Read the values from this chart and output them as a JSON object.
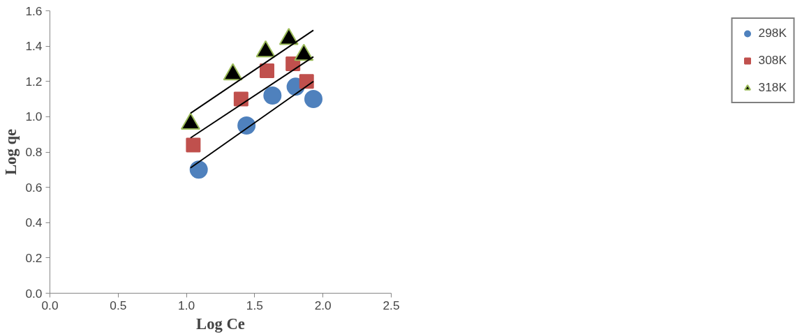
{
  "chart_data": {
    "type": "scatter",
    "xlabel": "Log Ce",
    "ylabel": "Log qe",
    "xlim": [
      0,
      2.5
    ],
    "ylim": [
      0,
      1.6
    ],
    "xticks": [
      {
        "value": 0,
        "label": "0.0"
      },
      {
        "value": 0.5,
        "label": "0.5"
      },
      {
        "value": 1,
        "label": "1.0"
      },
      {
        "value": 1.5,
        "label": "1.5"
      },
      {
        "value": 2,
        "label": "2.0"
      },
      {
        "value": 2.5,
        "label": "2.5"
      }
    ],
    "yticks": [
      {
        "value": 0,
        "label": "0.0"
      },
      {
        "value": 0.2,
        "label": "0.2"
      },
      {
        "value": 0.4,
        "label": "0.4"
      },
      {
        "value": 0.6,
        "label": "0.6"
      },
      {
        "value": 0.8,
        "label": "0.8"
      },
      {
        "value": 1,
        "label": "1.0"
      },
      {
        "value": 1.2,
        "label": "1.2"
      },
      {
        "value": 1.4,
        "label": "1.4"
      },
      {
        "value": 1.6,
        "label": "1.6"
      }
    ],
    "grid": false,
    "legend": "right",
    "series": [
      {
        "name": "298K",
        "color": "#4f81bd",
        "marker": "circle",
        "x": [
          1.09,
          1.44,
          1.63,
          1.8,
          1.93
        ],
        "values": [
          0.7,
          0.95,
          1.12,
          1.17,
          1.1
        ]
      },
      {
        "name": "308K",
        "color": "#c0504d",
        "marker": "square",
        "x": [
          1.05,
          1.4,
          1.59,
          1.78,
          1.88
        ],
        "values": [
          0.84,
          1.1,
          1.26,
          1.3,
          1.2
        ]
      },
      {
        "name": "318K",
        "color": "#000000",
        "marker": "triangle",
        "x": [
          1.03,
          1.34,
          1.58,
          1.75,
          1.86
        ],
        "values": [
          0.96,
          1.24,
          1.37,
          1.44,
          1.35
        ]
      },
      {
        "type": "line",
        "color": "#000000",
        "x": [
          1.03,
          1.93
        ],
        "values": [
          0.71,
          1.2
        ]
      },
      {
        "type": "line",
        "color": "#000000",
        "x": [
          1.03,
          1.93
        ],
        "values": [
          0.88,
          1.34
        ]
      },
      {
        "type": "line",
        "color": "#000000",
        "x": [
          1.03,
          1.93
        ],
        "values": [
          1.02,
          1.49
        ]
      }
    ]
  }
}
